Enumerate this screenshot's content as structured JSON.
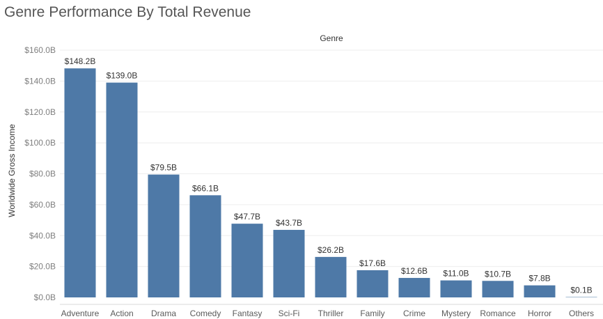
{
  "chart_data": {
    "type": "bar",
    "title": "Genre Performance By Total Revenue",
    "xlabel": "Genre",
    "ylabel": "Worldwide Gross Income",
    "categories": [
      "Adventure",
      "Action",
      "Drama",
      "Comedy",
      "Fantasy",
      "Sci-Fi",
      "Thriller",
      "Family",
      "Crime",
      "Mystery",
      "Romance",
      "Horror",
      "Others"
    ],
    "values": [
      148.2,
      139.0,
      79.5,
      66.1,
      47.7,
      43.7,
      26.2,
      17.6,
      12.6,
      11.0,
      10.7,
      7.8,
      0.1
    ],
    "data_labels": [
      "$148.2B",
      "$139.0B",
      "$79.5B",
      "$66.1B",
      "$47.7B",
      "$43.7B",
      "$26.2B",
      "$17.6B",
      "$12.6B",
      "$11.0B",
      "$10.7B",
      "$7.8B",
      "$0.1B"
    ],
    "yticks": [
      0,
      20,
      40,
      60,
      80,
      100,
      120,
      140,
      160
    ],
    "ytick_labels": [
      "$0.0B",
      "$20.0B",
      "$40.0B",
      "$60.0B",
      "$80.0B",
      "$100.0B",
      "$120.0B",
      "$140.0B",
      "$160.0B"
    ],
    "ylim": [
      0,
      160
    ],
    "grid": true,
    "bar_color": "#4e79a7",
    "unit": "billions USD"
  }
}
